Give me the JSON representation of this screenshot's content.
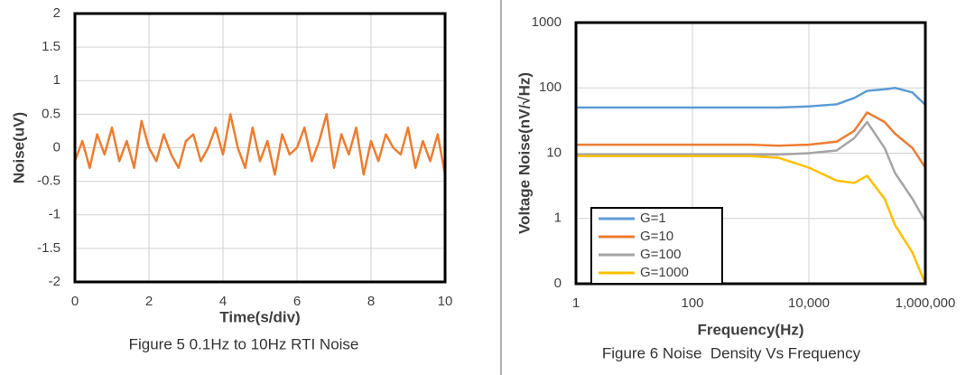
{
  "chart_data": [
    {
      "type": "line",
      "x_label": "Time(s/div)",
      "y_label": "Noise(uV)",
      "caption": "Figure 5 0.1Hz to 10Hz RTI Noise",
      "x": [
        0,
        0.2,
        0.4,
        0.6,
        0.8,
        1,
        1.2,
        1.4,
        1.6,
        1.8,
        2,
        2.2,
        2.4,
        2.6,
        2.8,
        3,
        3.2,
        3.4,
        3.6,
        3.8,
        4,
        4.2,
        4.4,
        4.6,
        4.8,
        5,
        5.2,
        5.4,
        5.6,
        5.8,
        6,
        6.2,
        6.4,
        6.6,
        6.8,
        7,
        7.2,
        7.4,
        7.6,
        7.8,
        8,
        8.2,
        8.4,
        8.6,
        8.8,
        9,
        9.2,
        9.4,
        9.6,
        9.8,
        10
      ],
      "values": [
        -0.2,
        0.1,
        -0.3,
        0.2,
        -0.1,
        0.3,
        -0.2,
        0.1,
        -0.3,
        0.4,
        0,
        -0.2,
        0.2,
        -0.1,
        -0.3,
        0.1,
        0.2,
        -0.2,
        0,
        0.3,
        -0.1,
        0.5,
        0,
        -0.3,
        0.3,
        -0.2,
        0.1,
        -0.4,
        0.2,
        -0.1,
        0,
        0.3,
        -0.2,
        0.1,
        0.5,
        -0.3,
        0.2,
        -0.1,
        0.3,
        -0.4,
        0.1,
        -0.2,
        0.2,
        0,
        -0.1,
        0.3,
        -0.3,
        0.1,
        -0.2,
        0.2,
        -0.4
      ],
      "color": "#ed7d31",
      "xlim": [
        0,
        10
      ],
      "xticks": [
        0,
        2,
        4,
        6,
        8,
        10
      ],
      "ylim": [
        -2,
        2
      ],
      "yticks": [
        -2,
        -1.5,
        -1,
        -0.5,
        0,
        0.5,
        1,
        1.5,
        2
      ],
      "grid": true
    },
    {
      "type": "line",
      "x_label": "Frequency(Hz)",
      "y_label": "Voltage Noise(nV/√Hz)",
      "caption": "Figure 6 Noise  Density Vs Frequency",
      "x": [
        1,
        10,
        100,
        1000,
        3000,
        10000,
        30000,
        60000,
        100000,
        200000,
        300000,
        600000,
        1000000
      ],
      "series": [
        {
          "name": "G=1",
          "color": "#5b9bd5",
          "values": [
            50,
            50,
            50,
            50,
            50,
            52,
            56,
            70,
            90,
            95,
            100,
            85,
            55
          ]
        },
        {
          "name": "G=10",
          "color": "#ed7d31",
          "values": [
            13.5,
            13.5,
            13.5,
            13.5,
            13,
            13.5,
            15,
            22,
            42,
            30,
            20,
            12,
            6
          ]
        },
        {
          "name": "G=100",
          "color": "#a5a5a5",
          "values": [
            9.5,
            9.5,
            9.5,
            9.5,
            9.5,
            10,
            11,
            17,
            30,
            12,
            5,
            2,
            0.9
          ]
        },
        {
          "name": "G=1000",
          "color": "#ffc000",
          "values": [
            9,
            9,
            9,
            9,
            8.5,
            6,
            3.8,
            3.5,
            4.5,
            2,
            0.8,
            0.3,
            0.1
          ]
        }
      ],
      "xlog": true,
      "ylog": true,
      "xlim": [
        1,
        1000000
      ],
      "xticks": [
        1,
        100,
        {
          "value": 10000,
          "label": "10,000"
        },
        {
          "value": 1000000,
          "label": "1,000,000"
        }
      ],
      "ylim": [
        0.1,
        1000
      ],
      "yticks": [
        {
          "value": 0.1,
          "label": "0"
        },
        1,
        10,
        100,
        1000
      ],
      "grid": true,
      "legend": "lower left"
    }
  ]
}
